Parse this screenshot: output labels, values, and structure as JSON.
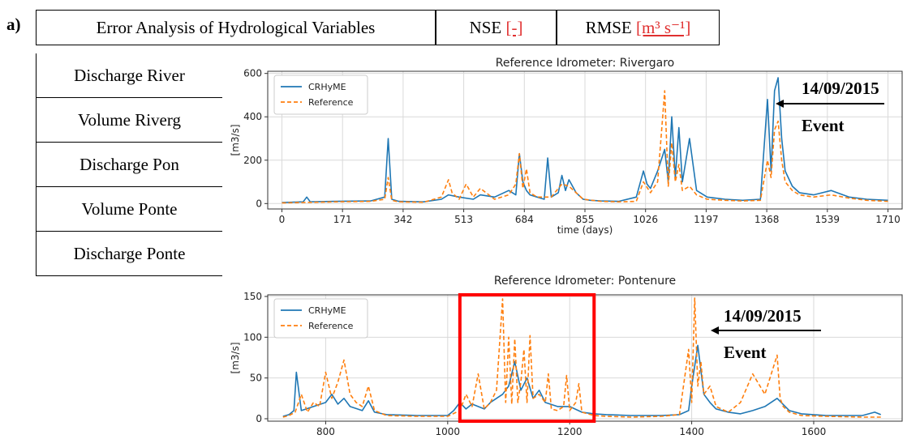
{
  "panel_label": "a)",
  "table": {
    "header": {
      "col1": "Error Analysis of Hydrological Variables",
      "col2_label": "NSE",
      "col2_unit": "[-]",
      "col3_label": "RMSE",
      "col3_unit": "[m³ s⁻¹]"
    },
    "rows": [
      "Discharge River",
      "Volume Riverg",
      "Discharge Pon",
      "Volume Ponte",
      "Discharge Ponte"
    ]
  },
  "chart_data": [
    {
      "type": "line",
      "title": "Reference Idrometer: Rivergaro",
      "xlabel": "time (days)",
      "ylabel": "[m3/s]",
      "xlim": [
        -40,
        1750
      ],
      "ylim": [
        -25,
        610
      ],
      "xticks": [
        0,
        171,
        342,
        513,
        684,
        855,
        1026,
        1197,
        1368,
        1539,
        1710
      ],
      "yticks": [
        0,
        200,
        400,
        600
      ],
      "grid": true,
      "legend": "top-left",
      "annotation": {
        "date": "14/09/2015",
        "label": "Event"
      },
      "series": [
        {
          "name": "CRHyME",
          "color": "#1f77b4",
          "style": "solid",
          "x": [
            0,
            60,
            70,
            80,
            150,
            250,
            290,
            300,
            310,
            330,
            400,
            450,
            470,
            500,
            540,
            560,
            600,
            640,
            660,
            670,
            680,
            690,
            700,
            720,
            740,
            750,
            760,
            780,
            790,
            800,
            810,
            830,
            850,
            870,
            900,
            950,
            1000,
            1020,
            1030,
            1040,
            1060,
            1080,
            1090,
            1100,
            1110,
            1120,
            1130,
            1150,
            1170,
            1200,
            1250,
            1300,
            1350,
            1370,
            1380,
            1390,
            1400,
            1410,
            1420,
            1440,
            1460,
            1500,
            1550,
            1600,
            1650,
            1710
          ],
          "y": [
            5,
            8,
            30,
            8,
            10,
            12,
            30,
            300,
            20,
            10,
            8,
            20,
            40,
            30,
            20,
            40,
            30,
            60,
            40,
            230,
            100,
            60,
            40,
            30,
            20,
            210,
            30,
            50,
            130,
            60,
            110,
            50,
            20,
            15,
            12,
            10,
            30,
            150,
            90,
            70,
            150,
            250,
            100,
            400,
            120,
            350,
            100,
            300,
            60,
            30,
            20,
            15,
            20,
            480,
            150,
            520,
            580,
            300,
            150,
            80,
            50,
            40,
            60,
            30,
            20,
            15
          ]
        },
        {
          "name": "Reference",
          "color": "#ff7f0e",
          "style": "dashed",
          "x": [
            0,
            60,
            150,
            250,
            290,
            300,
            310,
            330,
            400,
            450,
            470,
            480,
            500,
            520,
            540,
            560,
            600,
            640,
            660,
            670,
            680,
            690,
            700,
            720,
            760,
            790,
            810,
            830,
            850,
            900,
            950,
            1000,
            1020,
            1040,
            1060,
            1080,
            1090,
            1100,
            1110,
            1120,
            1130,
            1150,
            1170,
            1200,
            1250,
            1300,
            1350,
            1370,
            1380,
            1390,
            1400,
            1410,
            1420,
            1440,
            1460,
            1500,
            1550,
            1600,
            1650,
            1710
          ],
          "y": [
            3,
            5,
            8,
            10,
            20,
            120,
            15,
            8,
            6,
            30,
            110,
            50,
            20,
            90,
            30,
            70,
            20,
            40,
            90,
            230,
            70,
            160,
            50,
            30,
            30,
            90,
            80,
            50,
            20,
            10,
            8,
            10,
            100,
            50,
            100,
            520,
            80,
            280,
            100,
            180,
            60,
            80,
            40,
            20,
            15,
            12,
            15,
            200,
            120,
            340,
            380,
            200,
            100,
            60,
            40,
            30,
            40,
            25,
            15,
            10
          ]
        }
      ]
    },
    {
      "type": "line",
      "title": "Reference Idrometer: Pontenure",
      "xlabel": "",
      "ylabel": "[m3/s]",
      "xlim": [
        705,
        1745
      ],
      "ylim": [
        -3,
        152
      ],
      "xticks": [
        800,
        1000,
        1200,
        1400,
        1600
      ],
      "yticks": [
        0,
        50,
        100,
        150
      ],
      "grid": true,
      "legend": "top-left",
      "highlight_box_x": [
        1020,
        1240
      ],
      "annotation": {
        "date": "14/09/2015",
        "label": "Event"
      },
      "series": [
        {
          "name": "CRHyME",
          "color": "#1f77b4",
          "style": "solid",
          "x": [
            730,
            740,
            748,
            752,
            760,
            780,
            800,
            810,
            820,
            830,
            840,
            860,
            870,
            880,
            900,
            950,
            1000,
            1010,
            1020,
            1030,
            1040,
            1050,
            1060,
            1070,
            1080,
            1090,
            1100,
            1110,
            1120,
            1130,
            1140,
            1150,
            1160,
            1180,
            1200,
            1220,
            1240,
            1260,
            1300,
            1350,
            1380,
            1395,
            1400,
            1410,
            1420,
            1430,
            1440,
            1460,
            1480,
            1500,
            1520,
            1540,
            1560,
            1580,
            1620,
            1680,
            1700,
            1710
          ],
          "y": [
            3,
            5,
            10,
            57,
            10,
            15,
            20,
            30,
            18,
            25,
            15,
            10,
            22,
            8,
            5,
            4,
            4,
            10,
            20,
            12,
            18,
            15,
            12,
            20,
            25,
            30,
            40,
            70,
            35,
            50,
            25,
            35,
            20,
            15,
            15,
            8,
            6,
            5,
            4,
            4,
            5,
            10,
            40,
            90,
            30,
            20,
            12,
            8,
            6,
            10,
            15,
            25,
            10,
            6,
            4,
            4,
            8,
            5
          ]
        },
        {
          "name": "Reference",
          "color": "#ff7f0e",
          "style": "dashed",
          "x": [
            730,
            740,
            750,
            760,
            770,
            780,
            790,
            800,
            810,
            820,
            830,
            840,
            850,
            860,
            870,
            880,
            900,
            950,
            1000,
            1020,
            1030,
            1040,
            1050,
            1060,
            1070,
            1080,
            1090,
            1095,
            1100,
            1105,
            1110,
            1115,
            1120,
            1125,
            1130,
            1135,
            1140,
            1150,
            1160,
            1165,
            1170,
            1180,
            1190,
            1195,
            1200,
            1210,
            1215,
            1220,
            1240,
            1260,
            1300,
            1350,
            1380,
            1395,
            1400,
            1405,
            1410,
            1415,
            1420,
            1430,
            1440,
            1460,
            1480,
            1500,
            1520,
            1540,
            1545,
            1550,
            1560,
            1580,
            1620,
            1680,
            1710
          ],
          "y": [
            2,
            4,
            8,
            30,
            8,
            20,
            15,
            57,
            25,
            45,
            72,
            30,
            20,
            15,
            40,
            10,
            4,
            3,
            3,
            10,
            30,
            15,
            55,
            12,
            20,
            35,
            147,
            20,
            100,
            18,
            98,
            20,
            45,
            85,
            20,
            102,
            25,
            30,
            20,
            55,
            12,
            10,
            15,
            53,
            10,
            20,
            43,
            8,
            4,
            3,
            2,
            3,
            5,
            85,
            20,
            148,
            40,
            70,
            30,
            40,
            15,
            8,
            20,
            55,
            30,
            78,
            25,
            15,
            8,
            4,
            3,
            2,
            2
          ]
        }
      ]
    }
  ]
}
